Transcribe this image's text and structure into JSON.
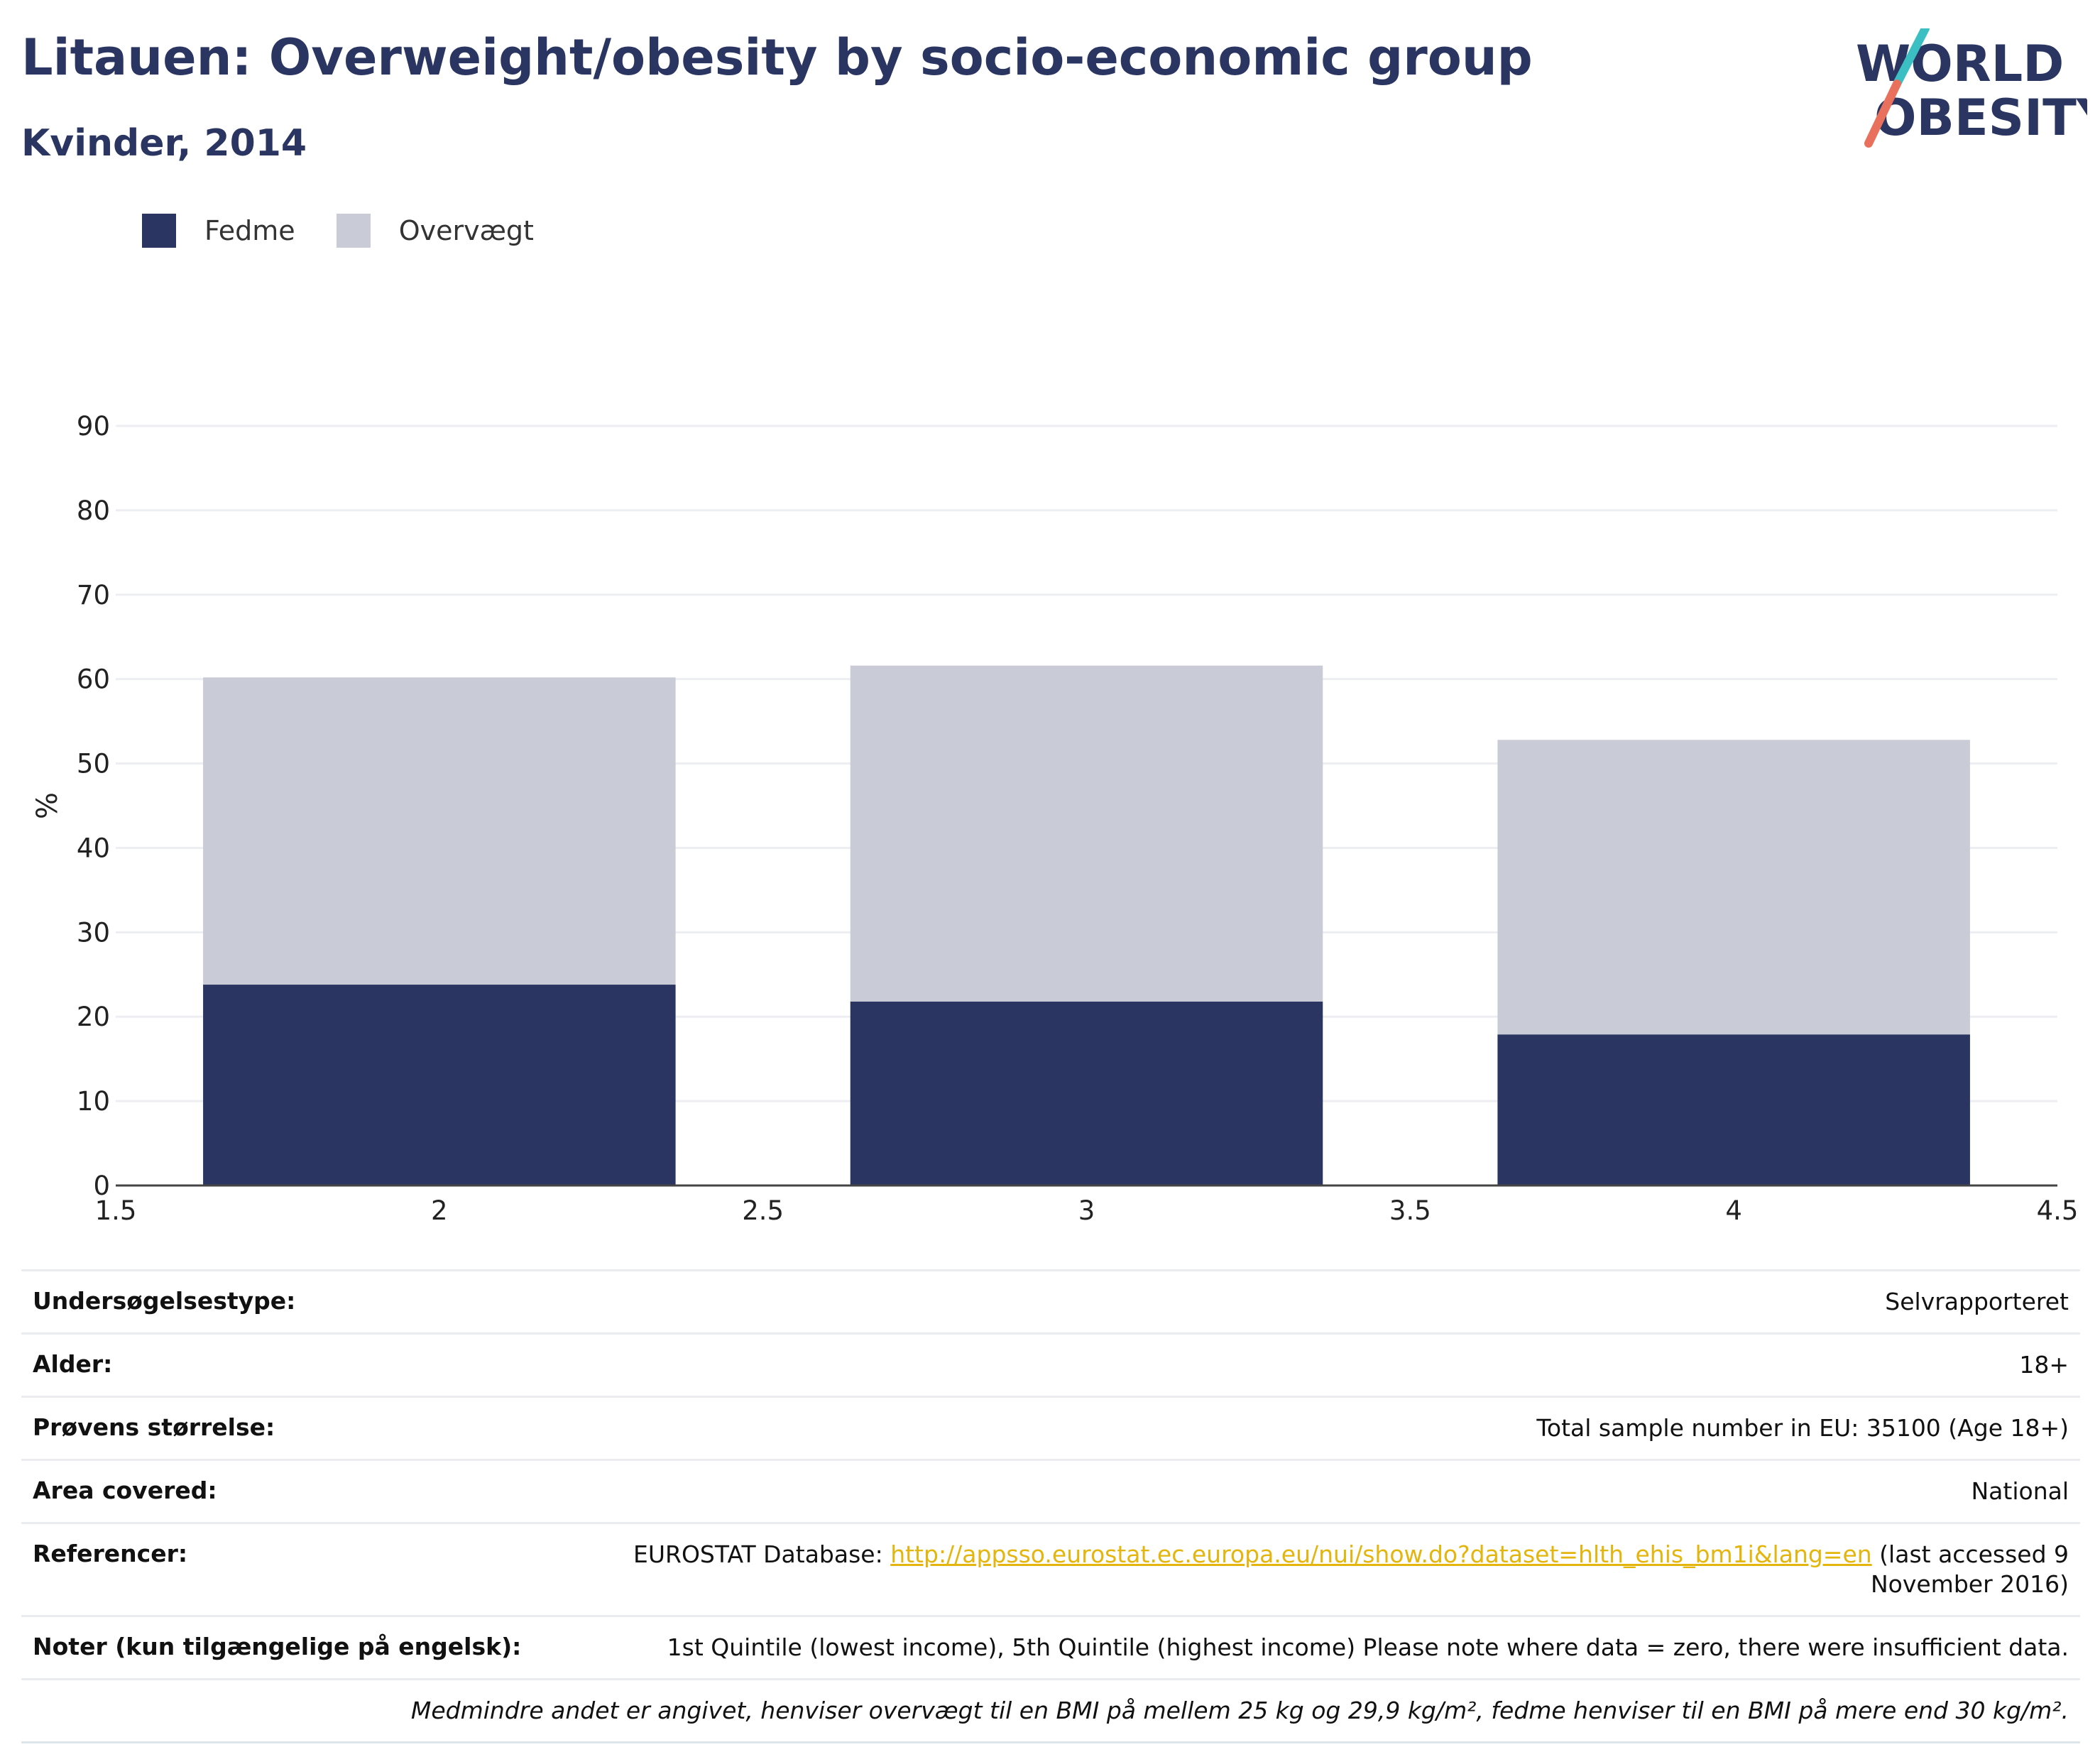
{
  "header": {
    "title": "Litauen: Overweight/obesity by socio-economic group",
    "subtitle": "Kvinder, 2014"
  },
  "logo": {
    "line1": "WORLD",
    "line2": "OBESITY",
    "colors": {
      "text": "#2a3561",
      "slash_teal": "#3bbfc3",
      "slash_coral": "#e8705c"
    }
  },
  "legend": [
    {
      "label": "Fedme",
      "color": "#2a3561"
    },
    {
      "label": "Overvægt",
      "color": "#c9ccd7"
    }
  ],
  "chart_data": {
    "type": "bar",
    "stacked": true,
    "x": [
      2,
      3,
      4
    ],
    "series": [
      {
        "name": "Fedme",
        "color": "#2a3561",
        "values": [
          23.8,
          21.8,
          17.9
        ]
      },
      {
        "name": "Overvægt",
        "color": "#c9ccd7",
        "values": [
          36.4,
          39.8,
          34.9
        ]
      }
    ],
    "xlim": [
      1.5,
      4.5
    ],
    "xticks": [
      "1.5",
      "2",
      "2.5",
      "3",
      "3.5",
      "4",
      "4.5"
    ],
    "ylim": [
      0,
      90
    ],
    "yticks": [
      "0",
      "10",
      "20",
      "30",
      "40",
      "50",
      "60",
      "70",
      "80",
      "90"
    ],
    "ylabel": "%",
    "xlabel": "",
    "grid": true,
    "legend_position": "top-left"
  },
  "info": {
    "survey_type_label": "Undersøgelsestype:",
    "survey_type_value": "Selvrapporteret",
    "age_label": "Alder:",
    "age_value": "18+",
    "sample_label": "Prøvens størrelse:",
    "sample_value": "Total sample number in EU: 35100 (Age 18+)",
    "area_label": "Area covered:",
    "area_value": "National",
    "ref_label": "Referencer:",
    "ref_prefix": "EUROSTAT Database: ",
    "ref_link": "http://appsso.eurostat.ec.europa.eu/nui/show.do?dataset=hlth_ehis_bm1i&lang=en",
    "ref_suffix": " (last accessed 9 November 2016)",
    "notes_label": "Noter (kun tilgængelige på engelsk):",
    "notes_value": "1st Quintile (lowest income), 5th Quintile (highest income) Please note where data = zero, there were insufficient data.",
    "footnote": "Medmindre andet er angivet, henviser overvægt til en BMI på mellem 25 kg og 29,9 kg/m², fedme henviser til en BMI på mere end 30 kg/m²."
  }
}
